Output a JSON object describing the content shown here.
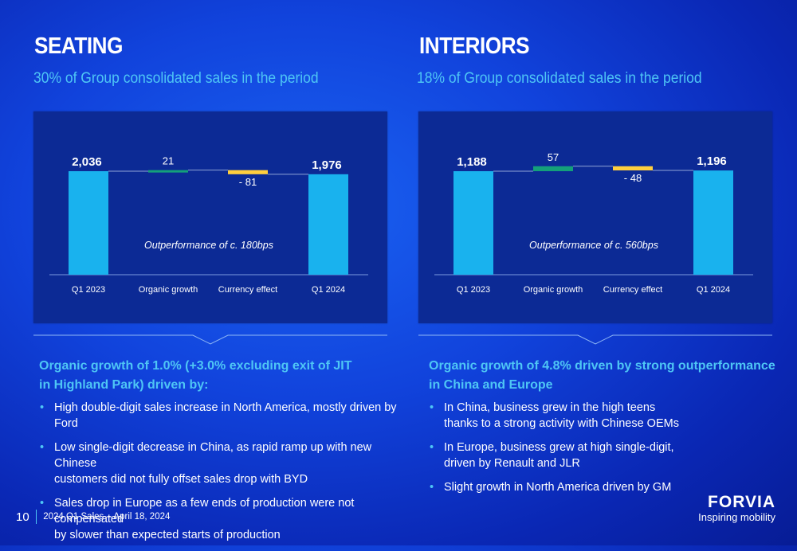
{
  "seating": {
    "title": "SEATING",
    "subtitle": "30% of Group consolidated sales in the period",
    "headline": "Organic growth of 1.0% (+3.0% excluding exit of JIT\nin Highland Park) driven by:",
    "bullets": [
      "High double-digit sales increase in North America, mostly driven by Ford",
      "Low single-digit decrease in China, as rapid ramp up with new Chinese\ncustomers did not fully offset sales drop with BYD",
      "Sales drop in Europe as a few ends of production were not compensated\nby slower than expected starts of production"
    ]
  },
  "interiors": {
    "title": "INTERIORS",
    "subtitle": "18% of Group consolidated sales in the period",
    "headline": "Organic growth of 4.8% driven by strong outperformance\nin China and Europe",
    "bullets": [
      "In China, business grew in the high teens\nthanks to a strong activity with Chinese OEMs",
      "In Europe, business grew at high single-digit,\ndriven by Renault and JLR",
      "Slight growth in North America driven by GM"
    ]
  },
  "footer": {
    "page_number": "10",
    "text": "2024 Q1 Sales – April 18, 2024"
  },
  "brand": {
    "logo": "FORVIA",
    "tagline": "Inspiring mobility"
  },
  "colors": {
    "background": "#1143dc",
    "accent": "#4ec6f5",
    "total_bar": "#19b2ee",
    "increase_bar": "#14a07a",
    "decrease_bar": "#ffcf3e"
  },
  "chart_data": [
    {
      "type": "waterfall",
      "categories": [
        "Q1 2023",
        "Organic growth",
        "Currency effect",
        "Q1 2024"
      ],
      "values": [
        2036,
        21,
        -81,
        1976
      ],
      "labels": [
        "2,036",
        "21",
        "- 81",
        "1,976"
      ],
      "kinds": [
        "total",
        "delta",
        "delta",
        "total"
      ],
      "annotation": "Outperformance of c. 180bps"
    },
    {
      "type": "waterfall",
      "categories": [
        "Q1 2023",
        "Organic growth",
        "Currency effect",
        "Q1 2024"
      ],
      "values": [
        1188,
        57,
        -48,
        1196
      ],
      "labels": [
        "1,188",
        "57",
        "- 48",
        "1,196"
      ],
      "kinds": [
        "total",
        "delta",
        "delta",
        "total"
      ],
      "annotation": "Outperformance of c. 560bps"
    }
  ]
}
